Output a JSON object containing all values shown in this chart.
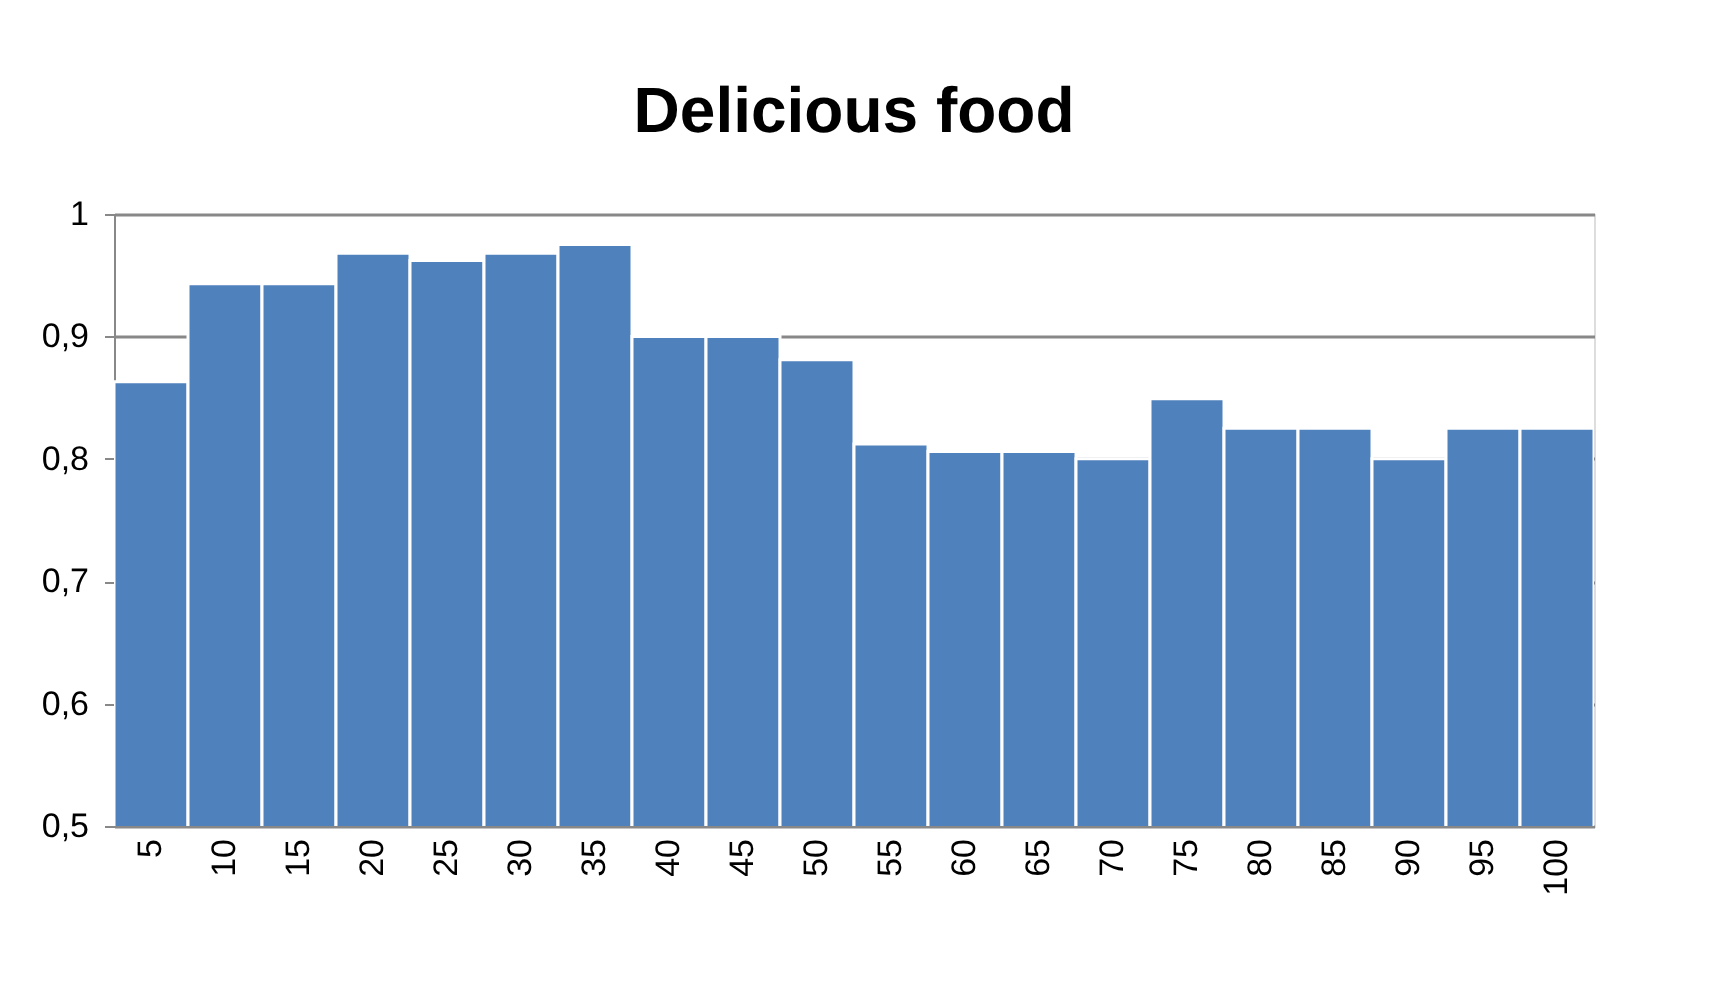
{
  "chart_data": {
    "type": "bar",
    "title": "Delicious food",
    "categories": [
      "5",
      "10",
      "15",
      "20",
      "25",
      "30",
      "35",
      "40",
      "45",
      "50",
      "55",
      "60",
      "65",
      "70",
      "75",
      "80",
      "85",
      "90",
      "95",
      "100"
    ],
    "values": [
      0.863,
      0.943,
      0.943,
      0.968,
      0.962,
      0.968,
      0.975,
      0.9,
      0.9,
      0.881,
      0.812,
      0.806,
      0.806,
      0.8,
      0.849,
      0.825,
      0.825,
      0.8,
      0.825,
      0.825
    ],
    "color": "#4f81bd",
    "ylim": [
      0.5,
      1
    ],
    "yticks": [
      {
        "value": 0.5,
        "label": "0,5"
      },
      {
        "value": 0.6,
        "label": "0,6"
      },
      {
        "value": 0.7,
        "label": "0,7"
      },
      {
        "value": 0.8,
        "label": "0,8"
      },
      {
        "value": 0.9,
        "label": "0,9"
      },
      {
        "value": 1,
        "label": "1"
      }
    ],
    "grid": "y"
  }
}
